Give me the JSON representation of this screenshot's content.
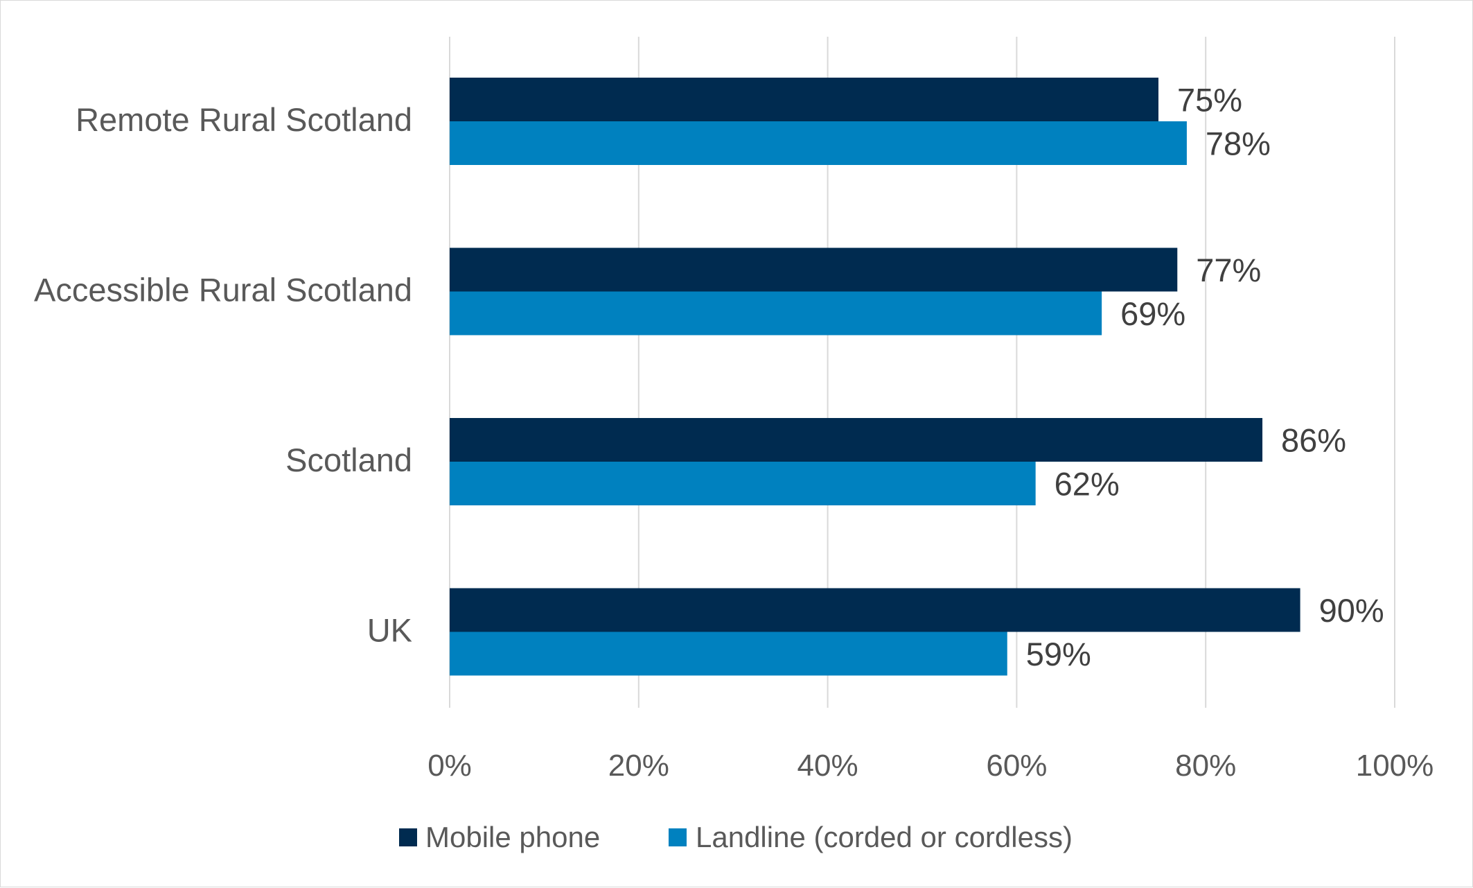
{
  "chart_data": {
    "type": "bar",
    "orientation": "horizontal",
    "categories": [
      "Remote Rural Scotland",
      "Accessible Rural Scotland",
      "Scotland",
      "UK"
    ],
    "series": [
      {
        "name": "Mobile phone",
        "color": "#002b50",
        "values": [
          75,
          77,
          86,
          90
        ],
        "labels": [
          "75%",
          "77%",
          "86%",
          "90%"
        ]
      },
      {
        "name": "Landline (corded or cordless)",
        "color": "#0081bf",
        "values": [
          78,
          69,
          62,
          59
        ],
        "labels": [
          "78%",
          "69%",
          "62%",
          "59%"
        ]
      }
    ],
    "xlim": [
      0,
      100
    ],
    "xticks": [
      0,
      20,
      40,
      60,
      80,
      100
    ],
    "xtick_labels": [
      "0%",
      "20%",
      "40%",
      "60%",
      "80%",
      "100%"
    ],
    "grid": "vertical",
    "legend_position": "bottom",
    "title": "",
    "xlabel": "",
    "ylabel": ""
  }
}
